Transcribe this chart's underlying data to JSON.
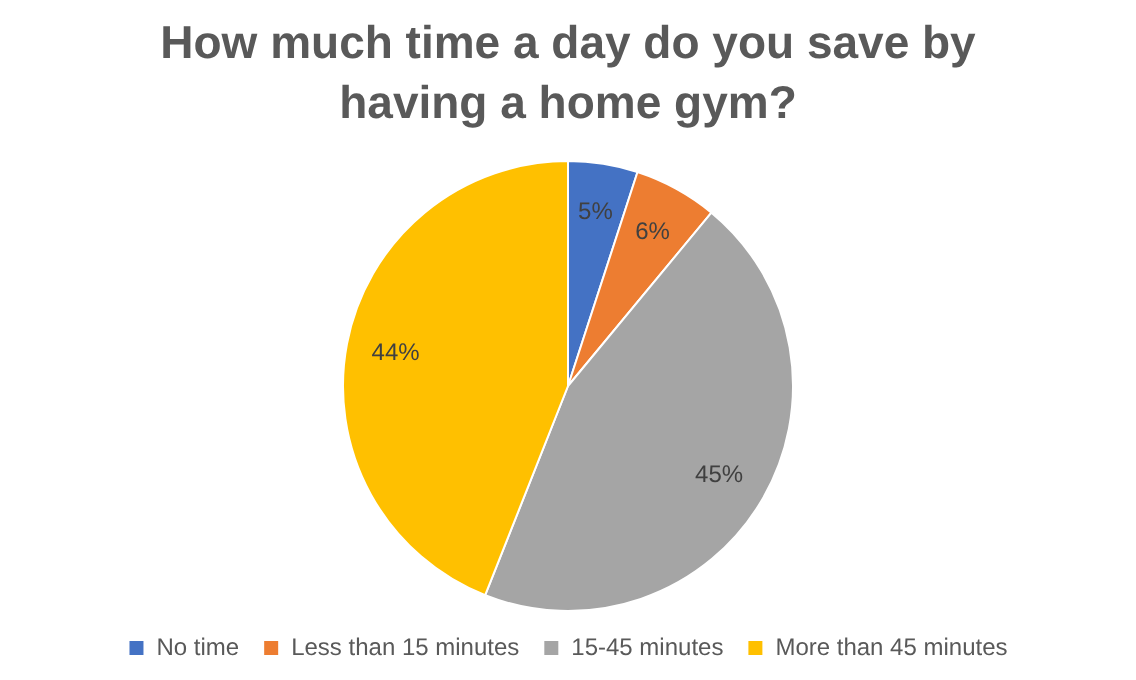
{
  "chart_data": {
    "type": "pie",
    "title": "How much time a day do you save by having a home gym?",
    "categories": [
      "No time",
      "Less than 15 minutes",
      "15-45 minutes",
      "More than 45 minutes"
    ],
    "values": [
      5,
      6,
      45,
      44
    ],
    "value_labels": [
      "5%",
      "6%",
      "45%",
      "44%"
    ],
    "colors": [
      "#4472c4",
      "#ed7d31",
      "#a5a5a5",
      "#ffc000"
    ],
    "legend": "bottom"
  }
}
